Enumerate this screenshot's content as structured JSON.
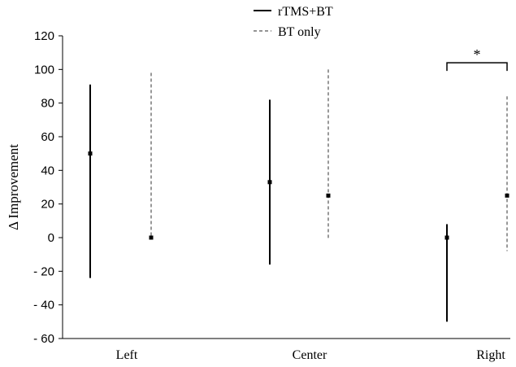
{
  "chart_data": {
    "type": "range",
    "categories": [
      "Left",
      "Center",
      "Right"
    ],
    "ylabel": "Δ Improvement",
    "ylim": [
      -60,
      120
    ],
    "yticks": [
      120,
      100,
      80,
      60,
      40,
      20,
      0,
      -20,
      -40,
      -60
    ],
    "ytick_labels": [
      "120",
      "100",
      "80",
      "60",
      "40",
      "20",
      "0",
      "- 20",
      "- 40",
      "- 60"
    ],
    "grid": false,
    "legend_position": "top-center",
    "series": [
      {
        "name": "rTMS+BT",
        "line_style": "solid",
        "color": "#000000",
        "data": [
          {
            "category": "Left",
            "median": 50,
            "low": -24,
            "high": 91
          },
          {
            "category": "Center",
            "median": 33,
            "low": -16,
            "high": 82
          },
          {
            "category": "Right",
            "median": 0,
            "low": -50,
            "high": 8
          }
        ]
      },
      {
        "name": "BT only",
        "line_style": "dashed",
        "color": "#555555",
        "data": [
          {
            "category": "Left",
            "median": 0,
            "low": 0,
            "high": 98
          },
          {
            "category": "Center",
            "median": 25,
            "low": -1,
            "high": 100
          },
          {
            "category": "Right",
            "median": 25,
            "low": -8,
            "high": 84
          }
        ]
      }
    ],
    "annotations": [
      {
        "type": "significance",
        "text": "*",
        "category": "Right",
        "y": 104
      }
    ]
  }
}
